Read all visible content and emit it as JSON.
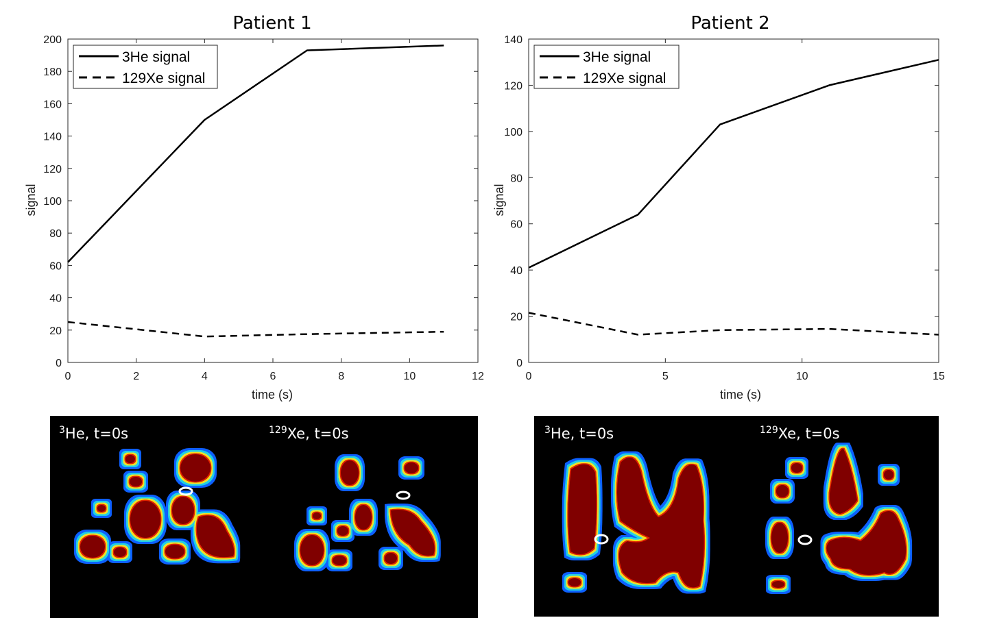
{
  "chart_data": [
    {
      "type": "line",
      "title": "Patient 1",
      "xlabel": "time (s)",
      "ylabel": "signal",
      "xlim": [
        0,
        12
      ],
      "ylim": [
        0,
        200
      ],
      "xticks": [
        0,
        2,
        4,
        6,
        8,
        10,
        12
      ],
      "yticks": [
        0,
        20,
        40,
        60,
        80,
        100,
        120,
        140,
        160,
        180,
        200
      ],
      "legend": "top-left",
      "series": [
        {
          "name": "3He signal",
          "style": "solid",
          "x": [
            0,
            4,
            7,
            11
          ],
          "values": [
            62,
            150,
            193,
            196
          ]
        },
        {
          "name": "129Xe signal",
          "style": "dashed",
          "x": [
            0,
            4,
            7,
            11
          ],
          "values": [
            25,
            16,
            17.5,
            19
          ]
        }
      ]
    },
    {
      "type": "line",
      "title": "Patient 2",
      "xlabel": "time (s)",
      "ylabel": "signal",
      "xlim": [
        0,
        15
      ],
      "ylim": [
        0,
        140
      ],
      "xticks": [
        0,
        5,
        10,
        15
      ],
      "yticks": [
        0,
        20,
        40,
        60,
        80,
        100,
        120,
        140
      ],
      "legend": "top-left",
      "series": [
        {
          "name": "3He signal",
          "style": "solid",
          "x": [
            0,
            4,
            7,
            11,
            15
          ],
          "values": [
            41,
            64,
            103,
            120,
            131
          ]
        },
        {
          "name": "129Xe signal",
          "style": "dashed",
          "x": [
            0,
            4,
            7,
            11,
            15
          ],
          "values": [
            21.5,
            12,
            14,
            14.5,
            12
          ]
        }
      ]
    }
  ],
  "images": [
    {
      "panel": "Patient 1",
      "left_label": {
        "sup": "3",
        "main": "He, t=0s"
      },
      "right_label": {
        "sup": "129",
        "main": "Xe, t=0s"
      }
    },
    {
      "panel": "Patient 2",
      "left_label": {
        "sup": "3",
        "main": "He, t=0s"
      },
      "right_label": {
        "sup": "129",
        "main": "Xe, t=0s"
      }
    }
  ],
  "colors": {
    "background": "#ffffff",
    "line": "#000000",
    "image_bg": "#000000",
    "tissue_dark": "#800000",
    "tissue_red": "#e02000",
    "tissue_yellow": "#f0e020",
    "tissue_cyan": "#20d0e0",
    "tissue_blue": "#1060ff",
    "roi_marker": "#ffffff"
  }
}
